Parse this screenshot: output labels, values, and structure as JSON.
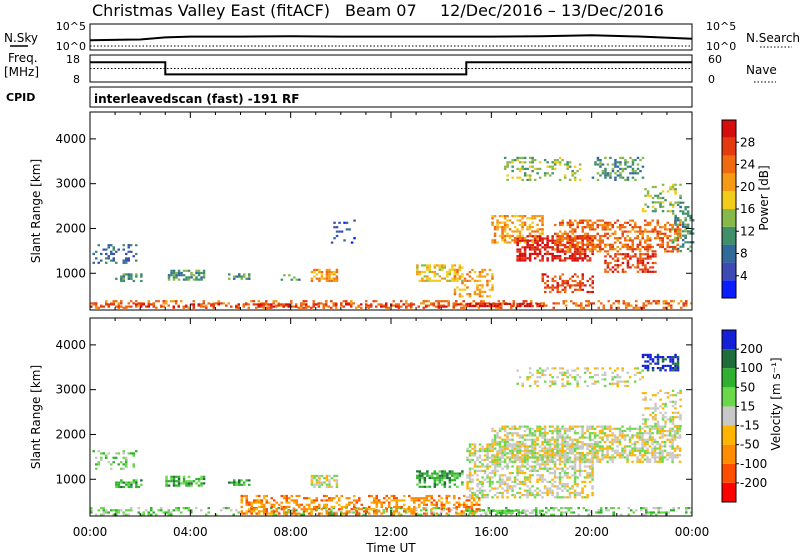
{
  "header": {
    "title": "Christmas Valley East (fitACF)",
    "beam": "Beam 07",
    "date_range": "12/Dec/2016 – 13/Dec/2016"
  },
  "side_labels": {
    "n_sky": "N.Sky",
    "n_search": "N.Search",
    "freq": "Freq.",
    "freq_unit": "[MHz]",
    "nave": "Nave",
    "cpid": "CPID"
  },
  "cpid_text": "interleavedscan (fast) -191 RF",
  "colors": {
    "power": [
      "#0a1dff",
      "#3e4bb5",
      "#2f6a98",
      "#3f8f6a",
      "#86b94a",
      "#f2cc1a",
      "#f59a14",
      "#f06a10",
      "#e33a10",
      "#d40d0d"
    ],
    "velocity": [
      "#ff0000",
      "#ff4d00",
      "#ff8c00",
      "#ffb400",
      "#c8c8c8",
      "#6ad84a",
      "#2fb02f",
      "#1f6e3a",
      "#1420d8"
    ]
  },
  "chart_data": [
    {
      "type": "line",
      "title": "N.Sky / N.Search",
      "y_left_ticks": [
        "10^0",
        "10^5"
      ],
      "y_right_ticks": [
        "10^0",
        "10^5"
      ],
      "x": [
        0,
        2,
        3,
        4,
        6,
        8,
        10,
        12,
        14,
        16,
        18,
        20,
        22,
        24
      ],
      "series": [
        {
          "name": "N.Sky",
          "values": [
            1.6,
            1.8,
            2.4,
            2.6,
            2.6,
            2.7,
            2.6,
            2.6,
            2.6,
            2.6,
            2.7,
            3.0,
            2.6,
            2.0
          ]
        },
        {
          "name": "N.Search",
          "values": [
            0,
            0,
            0,
            0,
            0,
            0,
            0,
            0,
            0,
            0,
            0,
            0,
            0,
            0
          ]
        }
      ]
    },
    {
      "type": "line",
      "title": "Freq. / Nave",
      "y_left_ticks": [
        "8",
        "18"
      ],
      "y_right_ticks": [
        "0",
        "60"
      ],
      "x": [
        0,
        3,
        3,
        15,
        15,
        24
      ],
      "series": [
        {
          "name": "Freq.",
          "values": [
            16.0,
            16.0,
            10.2,
            10.2,
            16.0,
            16.0
          ]
        },
        {
          "name": "Nave",
          "values": [
            30,
            30,
            30,
            30,
            30,
            30
          ]
        }
      ]
    },
    {
      "type": "heatmap",
      "title": "Power [dB]",
      "xlabel": "Time UT",
      "ylabel": "Slant Range [km]",
      "xlim": [
        0,
        24
      ],
      "ylim": [
        180,
        4600
      ],
      "x_ticks": [
        "00:00",
        "04:00",
        "08:00",
        "12:00",
        "16:00",
        "20:00",
        "00:00"
      ],
      "y_ticks": [
        1000,
        2000,
        3000,
        4000
      ],
      "colorbar_label": "Power [dB]",
      "colorbar_ticks": [
        4,
        8,
        12,
        16,
        20,
        24,
        28
      ],
      "regions": [
        {
          "t": [
            0.0,
            24.0
          ],
          "r": [
            250,
            400
          ],
          "level": 7,
          "density": 0.35
        },
        {
          "t": [
            0.0,
            15.0
          ],
          "r": [
            250,
            330
          ],
          "level": 8,
          "density": 0.4
        },
        {
          "t": [
            15.0,
            18.0
          ],
          "r": [
            270,
            340
          ],
          "level": 9,
          "density": 0.7
        },
        {
          "t": [
            0.1,
            1.8
          ],
          "r": [
            1250,
            1650
          ],
          "level": 2,
          "density": 0.3
        },
        {
          "t": [
            1.0,
            2.0
          ],
          "r": [
            850,
            1000
          ],
          "level": 3,
          "density": 0.5
        },
        {
          "t": [
            3.0,
            4.5
          ],
          "r": [
            880,
            1080
          ],
          "level": 3,
          "density": 0.6
        },
        {
          "t": [
            5.5,
            6.3
          ],
          "r": [
            860,
            1000
          ],
          "level": 3,
          "density": 0.5
        },
        {
          "t": [
            7.5,
            8.3
          ],
          "r": [
            850,
            980
          ],
          "level": 3,
          "density": 0.4
        },
        {
          "t": [
            8.8,
            9.8
          ],
          "r": [
            850,
            1100
          ],
          "level": 6,
          "density": 0.7
        },
        {
          "t": [
            13.0,
            14.8
          ],
          "r": [
            830,
            1200
          ],
          "level": 5,
          "density": 0.6
        },
        {
          "t": [
            14.5,
            16.0
          ],
          "r": [
            500,
            1100
          ],
          "level": 6,
          "density": 0.4
        },
        {
          "t": [
            16.0,
            18.0
          ],
          "r": [
            1700,
            2300
          ],
          "level": 6,
          "density": 0.5
        },
        {
          "t": [
            17.0,
            20.0
          ],
          "r": [
            1300,
            1850
          ],
          "level": 9,
          "density": 0.6
        },
        {
          "t": [
            18.5,
            23.5
          ],
          "r": [
            1500,
            2200
          ],
          "level": 7,
          "density": 0.5
        },
        {
          "t": [
            20.5,
            22.5
          ],
          "r": [
            1050,
            1450
          ],
          "level": 8,
          "density": 0.5
        },
        {
          "t": [
            16.5,
            19.5
          ],
          "r": [
            3100,
            3600
          ],
          "level": 4,
          "density": 0.3
        },
        {
          "t": [
            20.0,
            22.0
          ],
          "r": [
            3100,
            3600
          ],
          "level": 3,
          "density": 0.3
        },
        {
          "t": [
            22.0,
            23.5
          ],
          "r": [
            2400,
            3000
          ],
          "level": 4,
          "density": 0.3
        },
        {
          "t": [
            23.2,
            24.0
          ],
          "r": [
            1500,
            2600
          ],
          "level": 3,
          "density": 0.3
        },
        {
          "t": [
            18.0,
            20.0
          ],
          "r": [
            600,
            1000
          ],
          "level": 8,
          "density": 0.4
        },
        {
          "t": [
            9.5,
            10.5
          ],
          "r": [
            1700,
            2200
          ],
          "level": 1,
          "density": 0.15
        }
      ]
    },
    {
      "type": "heatmap",
      "title": "Velocity [m s-1]",
      "xlabel": "Time UT",
      "ylabel": "Slant Range [km]",
      "xlim": [
        0,
        24
      ],
      "ylim": [
        180,
        4600
      ],
      "x_ticks": [
        "00:00",
        "04:00",
        "08:00",
        "12:00",
        "16:00",
        "20:00",
        "00:00"
      ],
      "y_ticks": [
        1000,
        2000,
        3000,
        4000
      ],
      "colorbar_label": "Velocity [m s⁻¹]",
      "colorbar_ticks": [
        "200",
        "100",
        "50",
        "15",
        "-15",
        "-50",
        "-100",
        "-200"
      ],
      "regions": [
        {
          "t": [
            0.0,
            24.0
          ],
          "r": [
            230,
            380
          ],
          "level": 5,
          "density": 0.35
        },
        {
          "t": [
            6.0,
            15.5
          ],
          "r": [
            250,
            650
          ],
          "level": 2,
          "density": 0.45
        },
        {
          "t": [
            15.0,
            18.0
          ],
          "r": [
            240,
            320
          ],
          "level": 5,
          "density": 0.6
        },
        {
          "t": [
            0.1,
            1.8
          ],
          "r": [
            1250,
            1650
          ],
          "level": 5,
          "density": 0.3
        },
        {
          "t": [
            1.0,
            2.0
          ],
          "r": [
            850,
            1000
          ],
          "level": 6,
          "density": 0.5
        },
        {
          "t": [
            3.0,
            4.5
          ],
          "r": [
            880,
            1080
          ],
          "level": 6,
          "density": 0.6
        },
        {
          "t": [
            5.5,
            6.3
          ],
          "r": [
            860,
            1000
          ],
          "level": 6,
          "density": 0.5
        },
        {
          "t": [
            8.8,
            9.8
          ],
          "r": [
            850,
            1100
          ],
          "level": 4,
          "density": 0.6
        },
        {
          "t": [
            13.0,
            14.8
          ],
          "r": [
            830,
            1200
          ],
          "level": 6,
          "density": 0.6
        },
        {
          "t": [
            15.0,
            20.0
          ],
          "r": [
            600,
            1800
          ],
          "level": 4,
          "density": 0.5
        },
        {
          "t": [
            16.0,
            23.5
          ],
          "r": [
            1400,
            2200
          ],
          "level": 4,
          "density": 0.6
        },
        {
          "t": [
            22.0,
            23.5
          ],
          "r": [
            2200,
            3000
          ],
          "level": 4,
          "density": 0.35
        },
        {
          "t": [
            17.0,
            22.0
          ],
          "r": [
            3100,
            3500
          ],
          "level": 4,
          "density": 0.3
        },
        {
          "t": [
            22.0,
            23.4
          ],
          "r": [
            3450,
            3800
          ],
          "level": 8,
          "density": 0.5
        }
      ]
    }
  ]
}
